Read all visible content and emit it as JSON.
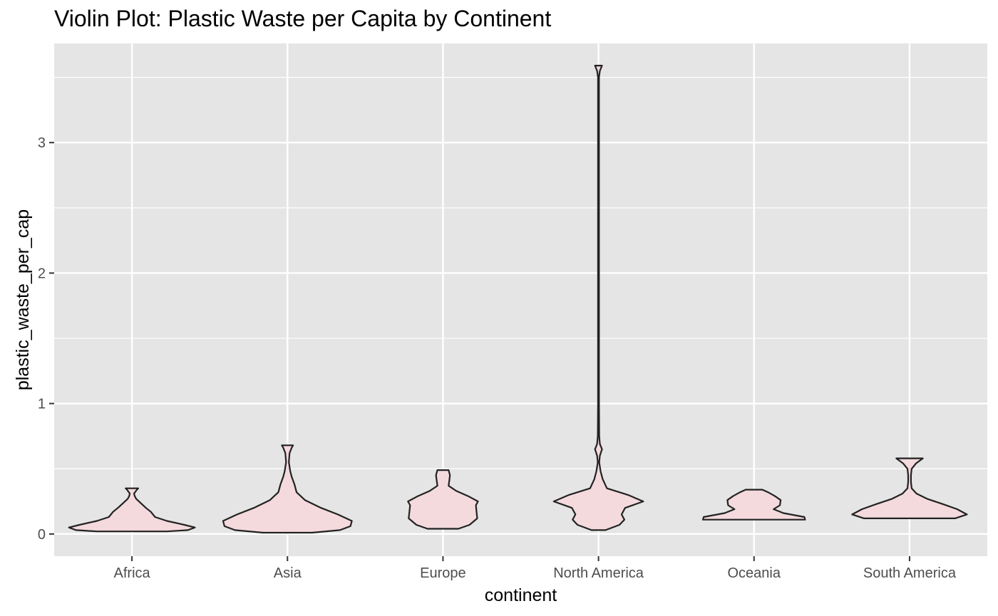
{
  "chart_data": {
    "type": "violin",
    "title": "Violin Plot: Plastic Waste per Capita by Continent",
    "xlabel": "continent",
    "ylabel": "plastic_waste_per_cap",
    "ylim": [
      -0.17,
      3.76
    ],
    "yticks": [
      0,
      1,
      2,
      3
    ],
    "grid": true,
    "legend": "none",
    "colors": {
      "panel": "#e5e5e5",
      "grid": "#ffffff",
      "fill": "#f4dadd",
      "stroke": "#222222",
      "tick": "#4d4d4d"
    },
    "categories": [
      "Africa",
      "Asia",
      "Europe",
      "North America",
      "Oceania",
      "South America"
    ],
    "series": [
      {
        "category": "Africa",
        "min": 0.02,
        "max": 0.35,
        "profile": [
          [
            0.02,
            0.5
          ],
          [
            0.03,
            0.8
          ],
          [
            0.05,
            0.9
          ],
          [
            0.07,
            0.75
          ],
          [
            0.1,
            0.5
          ],
          [
            0.13,
            0.33
          ],
          [
            0.17,
            0.27
          ],
          [
            0.2,
            0.2
          ],
          [
            0.24,
            0.12
          ],
          [
            0.27,
            0.06
          ],
          [
            0.29,
            0.04
          ],
          [
            0.31,
            0.03
          ],
          [
            0.34,
            0.07
          ],
          [
            0.35,
            0.09
          ]
        ]
      },
      {
        "category": "Asia",
        "min": 0.01,
        "max": 0.68,
        "profile": [
          [
            0.01,
            0.35
          ],
          [
            0.03,
            0.75
          ],
          [
            0.06,
            0.9
          ],
          [
            0.1,
            0.92
          ],
          [
            0.15,
            0.72
          ],
          [
            0.2,
            0.48
          ],
          [
            0.26,
            0.25
          ],
          [
            0.32,
            0.13
          ],
          [
            0.38,
            0.1
          ],
          [
            0.44,
            0.06
          ],
          [
            0.48,
            0.04
          ],
          [
            0.55,
            0.02
          ],
          [
            0.62,
            0.03
          ],
          [
            0.66,
            0.06
          ],
          [
            0.68,
            0.08
          ]
        ]
      },
      {
        "category": "Europe",
        "min": 0.04,
        "max": 0.49,
        "profile": [
          [
            0.04,
            0.22
          ],
          [
            0.07,
            0.38
          ],
          [
            0.12,
            0.49
          ],
          [
            0.17,
            0.48
          ],
          [
            0.22,
            0.47
          ],
          [
            0.25,
            0.5
          ],
          [
            0.29,
            0.36
          ],
          [
            0.33,
            0.19
          ],
          [
            0.37,
            0.08
          ],
          [
            0.41,
            0.09
          ],
          [
            0.45,
            0.1
          ],
          [
            0.49,
            0.08
          ]
        ]
      },
      {
        "category": "North America",
        "min": 0.03,
        "max": 3.59,
        "profile": [
          [
            0.03,
            0.1
          ],
          [
            0.07,
            0.3
          ],
          [
            0.11,
            0.37
          ],
          [
            0.15,
            0.33
          ],
          [
            0.2,
            0.38
          ],
          [
            0.25,
            0.64
          ],
          [
            0.3,
            0.42
          ],
          [
            0.35,
            0.12
          ],
          [
            0.42,
            0.06
          ],
          [
            0.48,
            0.03
          ],
          [
            0.55,
            0.01
          ],
          [
            0.6,
            0.02
          ],
          [
            0.65,
            0.05
          ],
          [
            0.69,
            0.02
          ],
          [
            0.75,
            0.01
          ],
          [
            1.0,
            0.007
          ],
          [
            2.0,
            0.007
          ],
          [
            3.0,
            0.007
          ],
          [
            3.5,
            0.007
          ],
          [
            3.55,
            0.02
          ],
          [
            3.59,
            0.05
          ]
        ]
      },
      {
        "category": "Oceania",
        "min": 0.11,
        "max": 0.34,
        "profile": [
          [
            0.11,
            0.73
          ],
          [
            0.13,
            0.72
          ],
          [
            0.16,
            0.42
          ],
          [
            0.19,
            0.28
          ],
          [
            0.22,
            0.37
          ],
          [
            0.26,
            0.38
          ],
          [
            0.29,
            0.3
          ],
          [
            0.32,
            0.2
          ],
          [
            0.34,
            0.12
          ]
        ]
      },
      {
        "category": "South America",
        "min": 0.12,
        "max": 0.58,
        "profile": [
          [
            0.12,
            0.65
          ],
          [
            0.15,
            0.82
          ],
          [
            0.19,
            0.68
          ],
          [
            0.23,
            0.47
          ],
          [
            0.27,
            0.25
          ],
          [
            0.31,
            0.1
          ],
          [
            0.35,
            0.03
          ],
          [
            0.4,
            0.02
          ],
          [
            0.45,
            0.02
          ],
          [
            0.5,
            0.03
          ],
          [
            0.54,
            0.09
          ],
          [
            0.58,
            0.19
          ]
        ]
      }
    ]
  }
}
